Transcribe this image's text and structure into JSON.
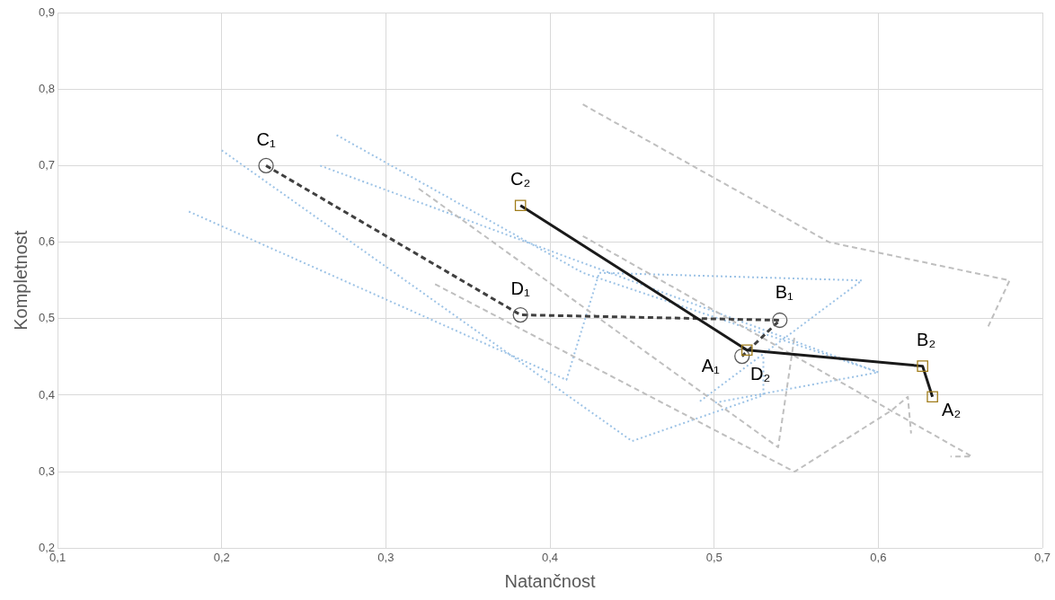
{
  "chart_data": {
    "type": "line",
    "xlabel": "Natančnost",
    "ylabel": "Kompletnost",
    "xlim": [
      0.1,
      0.7
    ],
    "ylim": [
      0.2,
      0.9
    ],
    "xticks": [
      {
        "value": 0.1,
        "label": "0,1"
      },
      {
        "value": 0.2,
        "label": "0,2"
      },
      {
        "value": 0.3,
        "label": "0,3"
      },
      {
        "value": 0.4,
        "label": "0,4"
      },
      {
        "value": 0.5,
        "label": "0,5"
      },
      {
        "value": 0.6,
        "label": "0,6"
      },
      {
        "value": 0.7,
        "label": "0,7"
      }
    ],
    "yticks": [
      {
        "value": 0.2,
        "label": "0,2"
      },
      {
        "value": 0.3,
        "label": "0,3"
      },
      {
        "value": 0.4,
        "label": "0,4"
      },
      {
        "value": 0.5,
        "label": "0,5"
      },
      {
        "value": 0.6,
        "label": "0,6"
      },
      {
        "value": 0.7,
        "label": "0,7"
      },
      {
        "value": 0.8,
        "label": "0,8"
      },
      {
        "value": 0.9,
        "label": "0,9"
      }
    ],
    "grid": true,
    "legend": false,
    "series": [
      {
        "color": "#9dc3e6",
        "line_style": "dotted",
        "marker": "none",
        "x": [
          0.18,
          0.41,
          0.43,
          0.59,
          0.49
        ],
        "values": [
          0.64,
          0.42,
          0.56,
          0.55,
          0.39
        ]
      },
      {
        "color": "#9dc3e6",
        "line_style": "dotted",
        "marker": "none",
        "x": [
          0.2,
          0.45,
          0.53,
          0.53
        ],
        "values": [
          0.72,
          0.34,
          0.4,
          0.45
        ]
      },
      {
        "color": "#9dc3e6",
        "line_style": "dotted",
        "marker": "none",
        "x": [
          0.27,
          0.42,
          0.6
        ],
        "values": [
          0.74,
          0.56,
          0.43
        ]
      },
      {
        "color": "#9dc3e6",
        "line_style": "dotted",
        "marker": "none",
        "x": [
          0.26,
          0.6,
          0.5
        ],
        "values": [
          0.7,
          0.43,
          0.39
        ]
      },
      {
        "color": "#bfbfbf",
        "line_style": "dashed",
        "marker": "none",
        "x": [
          0.42,
          0.57,
          0.68,
          0.667
        ],
        "values": [
          0.78,
          0.6,
          0.55,
          0.49
        ]
      },
      {
        "color": "#bfbfbf",
        "line_style": "dashed",
        "marker": "none",
        "x": [
          0.32,
          0.539,
          0.549
        ],
        "values": [
          0.67,
          0.332,
          0.477
        ]
      },
      {
        "color": "#bfbfbf",
        "line_style": "dashed",
        "marker": "none",
        "x": [
          0.42,
          0.657,
          0.644
        ],
        "values": [
          0.608,
          0.32,
          0.32
        ]
      },
      {
        "color": "#bfbfbf",
        "line_style": "dashed",
        "marker": "none",
        "x": [
          0.33,
          0.549,
          0.608,
          0.618,
          0.62
        ],
        "values": [
          0.545,
          0.3,
          0.38,
          0.398,
          0.35
        ]
      },
      {
        "color": "#404040",
        "colors": [
          "#595959",
          "#595959",
          "#595959",
          "#595959"
        ],
        "line_style": "dashed",
        "marker": "circle",
        "x": [
          0.227,
          0.382,
          0.54,
          0.517
        ],
        "values": [
          0.7,
          0.505,
          0.498,
          0.451
        ]
      },
      {
        "color": "#1a1a1a",
        "colors": [
          "#a07c1a",
          "#a07c1a",
          "#a07c1a",
          "#a07c1a"
        ],
        "line_style": "solid",
        "marker": "square",
        "x": [
          0.382,
          0.52,
          0.627,
          0.633
        ],
        "values": [
          0.648,
          0.459,
          0.438,
          0.398
        ]
      }
    ],
    "annotations": [
      {
        "text": "C₁",
        "x": 0.227,
        "y": 0.7
      },
      {
        "text": "D₁",
        "x": 0.382,
        "y": 0.505
      },
      {
        "text": "B₁",
        "x": 0.54,
        "y": 0.498
      },
      {
        "text": "A₁",
        "x": 0.517,
        "y": 0.451
      },
      {
        "text": "C₂",
        "x": 0.382,
        "y": 0.648
      },
      {
        "text": "D₂",
        "x": 0.52,
        "y": 0.459
      },
      {
        "text": "B₂",
        "x": 0.627,
        "y": 0.438
      },
      {
        "text": "A₂",
        "x": 0.633,
        "y": 0.398
      }
    ]
  }
}
